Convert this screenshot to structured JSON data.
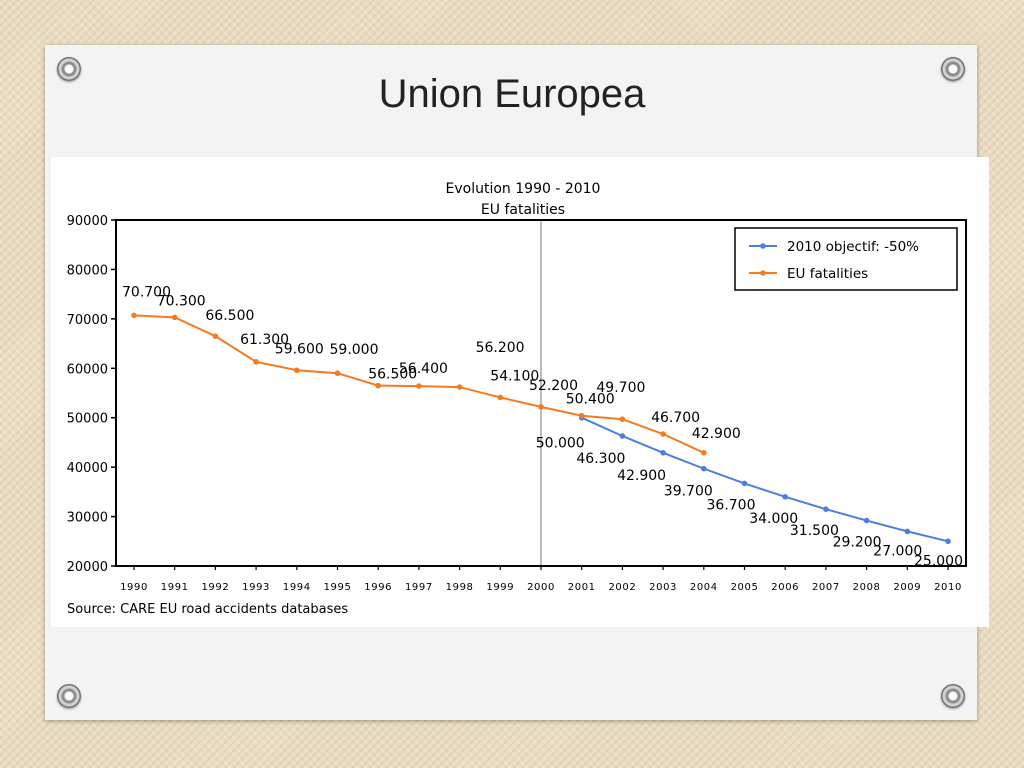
{
  "slide": {
    "title": "Union Europea"
  },
  "colors": {
    "eu": "#f47b20",
    "target": "#4a7fe0"
  },
  "chart_data": {
    "type": "line",
    "title": "Evolution 1990 - 2010",
    "subtitle": "EU fatalities",
    "source": "Source: CARE EU road accidents databases",
    "xlabel": "",
    "ylabel": "",
    "ylim": [
      20000,
      90000
    ],
    "yticks": [
      "20000",
      "30000",
      "40000",
      "50000",
      "60000",
      "70000",
      "80000",
      "90000"
    ],
    "x": [
      "1990",
      "1991",
      "1992",
      "1993",
      "1994",
      "1995",
      "1996",
      "1997",
      "1998",
      "1999",
      "2000",
      "2001",
      "2002",
      "2003",
      "2004",
      "2005",
      "2006",
      "2007",
      "2008",
      "2009",
      "2010"
    ],
    "legend": "top-right",
    "series": [
      {
        "name": "2010 objectif: -50%",
        "color": "#4a7fe0",
        "points": [
          {
            "x": "2001",
            "y": 50000,
            "label": "50.000"
          },
          {
            "x": "2002",
            "y": 46300,
            "label": "46.300"
          },
          {
            "x": "2003",
            "y": 42900,
            "label": "42.900"
          },
          {
            "x": "2004",
            "y": 39700,
            "label": "39.700"
          },
          {
            "x": "2005",
            "y": 36700,
            "label": "36.700"
          },
          {
            "x": "2006",
            "y": 34000,
            "label": "34.000"
          },
          {
            "x": "2007",
            "y": 31500,
            "label": "31.500"
          },
          {
            "x": "2008",
            "y": 29200,
            "label": "29.200"
          },
          {
            "x": "2009",
            "y": 27000,
            "label": "27.000"
          },
          {
            "x": "2010",
            "y": 25000,
            "label": "25.000"
          }
        ]
      },
      {
        "name": "EU fatalities",
        "color": "#f47b20",
        "points": [
          {
            "x": "1990",
            "y": 70700,
            "label": "70.700"
          },
          {
            "x": "1991",
            "y": 70300,
            "label": "70.300"
          },
          {
            "x": "1992",
            "y": 66500,
            "label": "66.500"
          },
          {
            "x": "1993",
            "y": 61300,
            "label": "61.300"
          },
          {
            "x": "1994",
            "y": 59600,
            "label": "59.600"
          },
          {
            "x": "1995",
            "y": 59000,
            "label": "59.000"
          },
          {
            "x": "1996",
            "y": 56500,
            "label": "56.500"
          },
          {
            "x": "1997",
            "y": 56400,
            "label": "56.400"
          },
          {
            "x": "1998",
            "y": 56200,
            "label": "56.200"
          },
          {
            "x": "1999",
            "y": 54100,
            "label": "54.100"
          },
          {
            "x": "2000",
            "y": 52200,
            "label": "52.200"
          },
          {
            "x": "2001",
            "y": 50400,
            "label": "50.400"
          },
          {
            "x": "2002",
            "y": 49700,
            "label": "49.700"
          },
          {
            "x": "2003",
            "y": 46700,
            "label": "46.700"
          },
          {
            "x": "2004",
            "y": 42900,
            "label": "42.900"
          }
        ]
      }
    ],
    "reference_line_x": "2000"
  }
}
